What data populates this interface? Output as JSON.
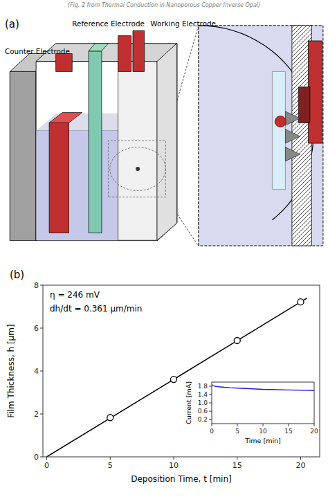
{
  "chart_data": [
    {
      "type": "diagram",
      "title": "(Fig. 2 from Thermal Conduction in Nanoporous Copper Inverse Opal)",
      "annotations": [
        "(a)",
        "Reference Electrode",
        "Working Electrode",
        "Counter Electrode"
      ]
    },
    {
      "type": "scatter",
      "title": "(b)",
      "xlabel": "Deposition Time, t [min]",
      "ylabel": "Film Thickness, h [μm]",
      "xlim": [
        -0.3,
        21.5
      ],
      "ylim": [
        0,
        8
      ],
      "xticks": [
        0,
        5,
        10,
        15,
        20
      ],
      "yticks": [
        0,
        2,
        4,
        6,
        8
      ],
      "annotations": [
        "η = 246 mV",
        "dh/dt = 0.361 μm/min"
      ],
      "series": [
        {
          "type": "line",
          "x": [
            0,
            20.5
          ],
          "values": [
            0,
            7.4005
          ],
          "color": "#000000"
        },
        {
          "type": "scatter",
          "x": [
            5,
            10,
            15,
            20
          ],
          "values": [
            1.83,
            3.61,
            5.42,
            7.22
          ],
          "color": "#000000",
          "marker": "open-circle"
        }
      ]
    },
    {
      "type": "line",
      "xlabel": "Time [min]",
      "ylabel": "Current [mA]",
      "xlim": [
        0,
        20
      ],
      "ylim": [
        0,
        2.0
      ],
      "xticks": [
        0,
        5,
        10,
        15,
        20
      ],
      "yticks": [
        0.2,
        0.6,
        {
          "value": 1.0,
          "label": "1.0"
        },
        1.4,
        1.8
      ],
      "series": [
        {
          "x": [
            0,
            0.05,
            0.15,
            0.3,
            0.5,
            0.8,
            1.2,
            2.0,
            3.5,
            6.0,
            10.0,
            15.0,
            20.0
          ],
          "values": [
            1.88,
            1.87,
            1.85,
            1.83,
            1.81,
            1.79,
            1.78,
            1.76,
            1.73,
            1.7,
            1.65,
            1.62,
            1.6
          ],
          "color": "#1a1acc"
        }
      ]
    }
  ]
}
